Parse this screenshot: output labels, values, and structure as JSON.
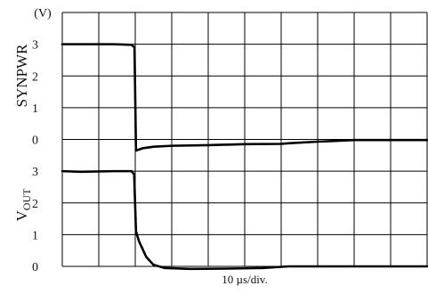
{
  "chart_data": {
    "type": "line",
    "unit_label": "(V)",
    "xlabel": "10 µs/div.",
    "x_divisions": 10,
    "x_unit": "µs",
    "x_per_division": 10,
    "panels": [
      {
        "ylabel": "SYNPWR",
        "ylim": [
          0,
          3
        ],
        "y_ticks": [
          "3",
          "2",
          "1",
          "0"
        ],
        "series": [
          {
            "x": [
              0,
              14,
              19,
              19.8,
              20.2,
              22,
              25,
              30,
              40,
              50,
              60,
              62,
              70,
              80,
              90,
              100
            ],
            "y": [
              3.0,
              3.0,
              2.98,
              2.9,
              -0.35,
              -0.28,
              -0.23,
              -0.2,
              -0.18,
              -0.15,
              -0.14,
              -0.12,
              -0.07,
              -0.02,
              -0.02,
              -0.02
            ]
          }
        ]
      },
      {
        "ylabel": "V",
        "ylabel_subscript": "OUT",
        "ylim": [
          0,
          3
        ],
        "y_ticks": [
          "3",
          "2",
          "1",
          "0"
        ],
        "series": [
          {
            "x": [
              0,
              5,
              14,
              19,
              19.7,
              20.2,
              21,
              22,
              23,
              25,
              28,
              35,
              45,
              55,
              62,
              70,
              80,
              90,
              100
            ],
            "y": [
              3.0,
              2.98,
              3.0,
              3.0,
              2.9,
              1.1,
              0.8,
              0.55,
              0.3,
              0.05,
              -0.05,
              -0.08,
              -0.07,
              -0.05,
              0.0,
              0.0,
              0.0,
              0.0,
              0.0
            ]
          }
        ]
      }
    ]
  }
}
